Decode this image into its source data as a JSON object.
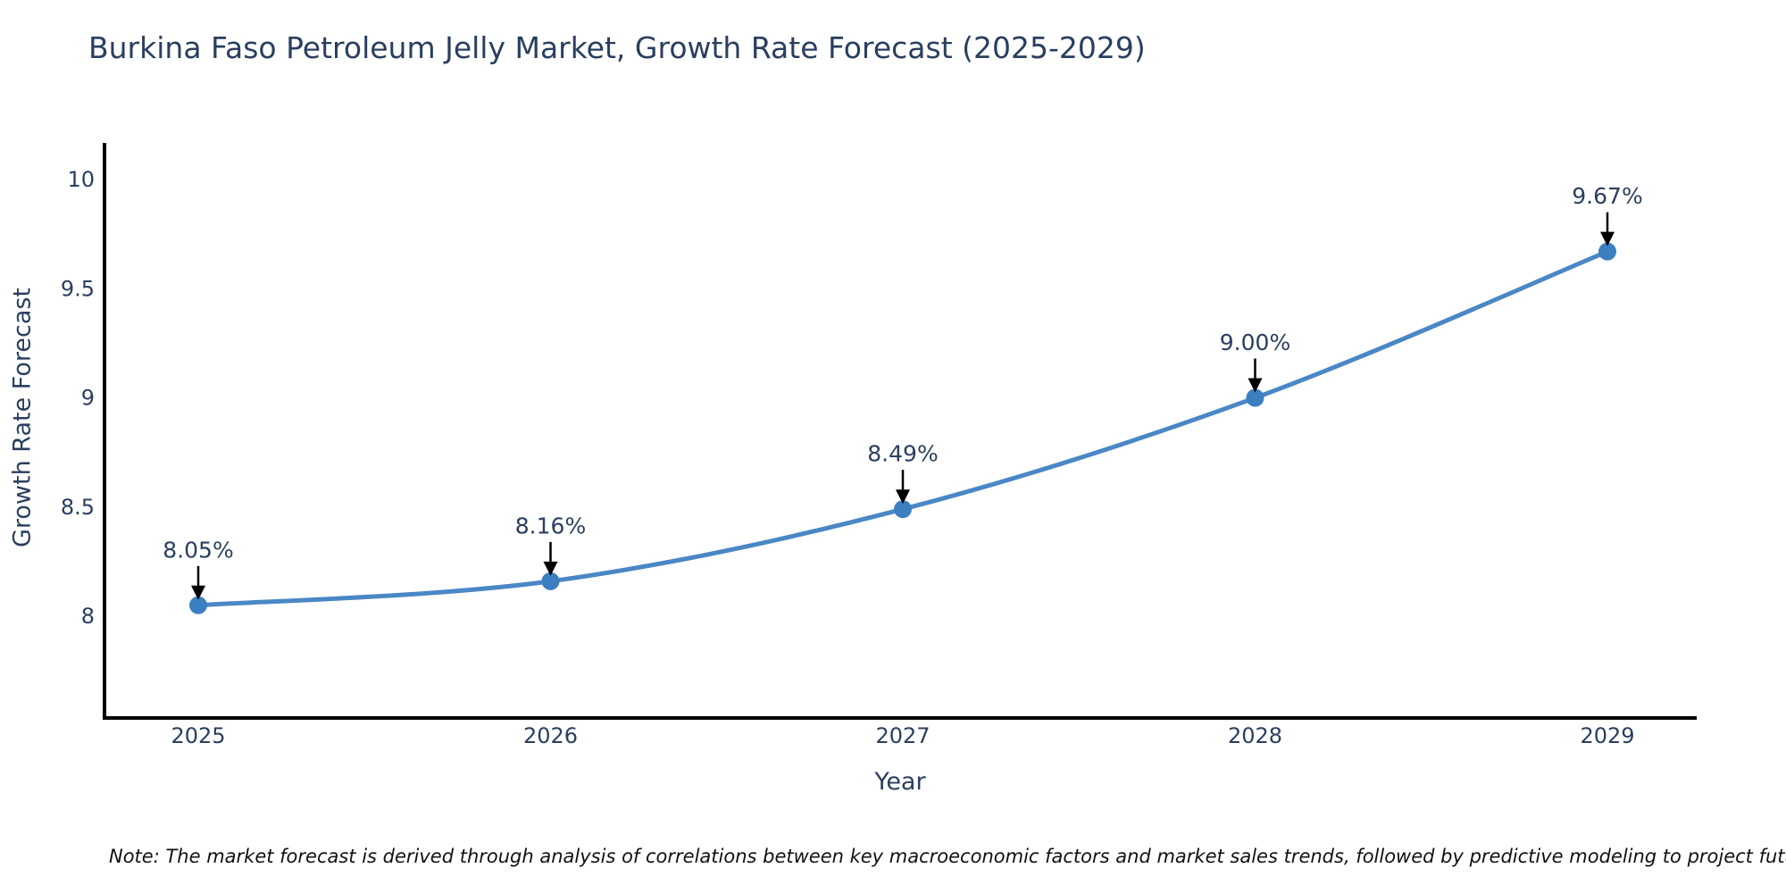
{
  "page": {
    "note": "Note: The market forecast is derived through analysis of correlations between key macroeconomic factors and market sales trends, followed by predictive modeling to project future sales"
  },
  "chart_data": {
    "type": "line",
    "title": "Burkina Faso Petroleum Jelly Market, Growth Rate Forecast (2025-2029)",
    "x": [
      2025,
      2026,
      2027,
      2028,
      2029
    ],
    "series": [
      {
        "name": "Growth Rate Forecast",
        "values": [
          8.05,
          8.16,
          8.49,
          9.0,
          9.67
        ]
      }
    ],
    "point_labels": [
      "8.05%",
      "8.16%",
      "8.49%",
      "9.00%",
      "9.67%"
    ],
    "xlabel": "Year",
    "ylabel": "Growth Rate Forecast",
    "x_tick_labels": [
      "2025",
      "2026",
      "2027",
      "2028",
      "2029"
    ],
    "y_ticks": [
      8,
      8.5,
      9,
      9.5,
      10
    ],
    "y_tick_labels": [
      "8",
      "8.5",
      "9",
      "9.5",
      "10"
    ],
    "ylim": [
      7.55,
      10.17
    ],
    "grid": false,
    "legend": "none",
    "line_shape": "spline",
    "colors": {
      "line": "#4a87c5",
      "marker": "#3c7fc0",
      "axis": "#000000",
      "text": "#2a3f5f",
      "annotation_text": "#2a3f5f",
      "annotation_arrow": "#000000",
      "background": "#ffffff"
    }
  }
}
